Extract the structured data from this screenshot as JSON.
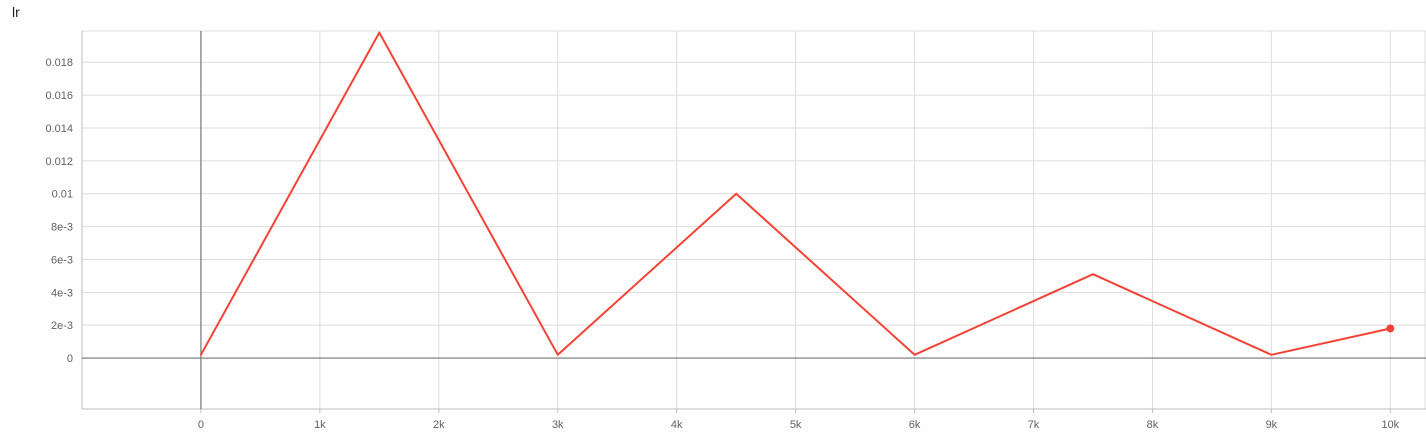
{
  "chart_data": {
    "type": "line",
    "title": "lr",
    "xlabel": "",
    "ylabel": "",
    "xlim": [
      -1000,
      10300
    ],
    "ylim": [
      -0.0031,
      0.0199
    ],
    "x_ticks": [
      {
        "value": 0,
        "label": "0"
      },
      {
        "value": 1000,
        "label": "1k"
      },
      {
        "value": 2000,
        "label": "2k"
      },
      {
        "value": 3000,
        "label": "3k"
      },
      {
        "value": 4000,
        "label": "4k"
      },
      {
        "value": 5000,
        "label": "5k"
      },
      {
        "value": 6000,
        "label": "6k"
      },
      {
        "value": 7000,
        "label": "7k"
      },
      {
        "value": 8000,
        "label": "8k"
      },
      {
        "value": 9000,
        "label": "9k"
      },
      {
        "value": 10000,
        "label": "10k"
      }
    ],
    "y_ticks": [
      {
        "value": 0,
        "label": "0"
      },
      {
        "value": 0.002,
        "label": "2e-3"
      },
      {
        "value": 0.004,
        "label": "4e-3"
      },
      {
        "value": 0.006,
        "label": "6e-3"
      },
      {
        "value": 0.008,
        "label": "8e-3"
      },
      {
        "value": 0.01,
        "label": "0.01"
      },
      {
        "value": 0.012,
        "label": "0.012"
      },
      {
        "value": 0.014,
        "label": "0.014"
      },
      {
        "value": 0.016,
        "label": "0.016"
      },
      {
        "value": 0.018,
        "label": "0.018"
      }
    ],
    "grid": true,
    "series": [
      {
        "color": "#f44336",
        "x": [
          0,
          1500,
          3000,
          4500,
          6000,
          7500,
          9000,
          10000
        ],
        "y": [
          0.0002,
          0.0198,
          0.0002,
          0.01,
          0.0002,
          0.0051,
          0.0002,
          0.0018
        ]
      }
    ]
  }
}
